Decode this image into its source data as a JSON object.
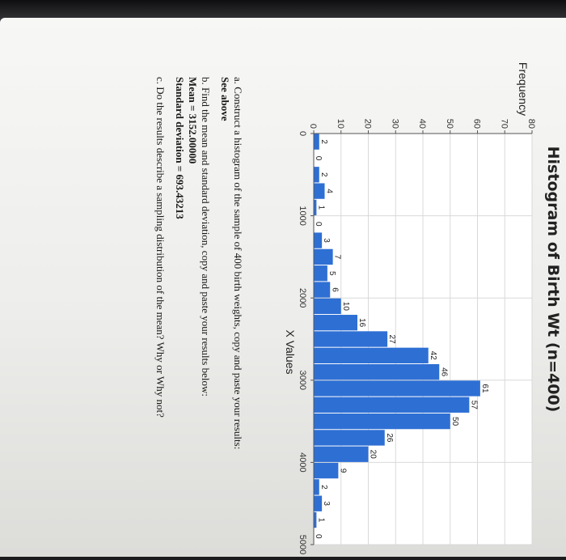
{
  "chart_data": {
    "type": "bar",
    "title": "Histogram of Birth Wt (n=400)",
    "xlabel": "X Values",
    "ylabel": "Frequency",
    "xlim": [
      0,
      5000
    ],
    "ylim": [
      0,
      80
    ],
    "x_ticks": [
      "0",
      "1000",
      "2000",
      "3000",
      "4000",
      "5000"
    ],
    "y_ticks": [
      "0",
      "10",
      "20",
      "30",
      "40",
      "50",
      "60",
      "70",
      "80"
    ],
    "bin_width": 200,
    "bin_starts": [
      0,
      200,
      400,
      600,
      800,
      1000,
      1200,
      1400,
      1600,
      1800,
      2000,
      2200,
      2400,
      2600,
      2800,
      3000,
      3200,
      3400,
      3600,
      3800,
      4000,
      4200,
      4400,
      4600,
      4800
    ],
    "values": [
      2,
      0,
      2,
      4,
      1,
      0,
      3,
      7,
      5,
      6,
      10,
      16,
      27,
      42,
      46,
      61,
      57,
      50,
      26,
      20,
      9,
      2,
      3,
      1,
      0
    ],
    "grid": true,
    "bar_color": "#2e6fd4"
  },
  "questions": {
    "a_text": "a. Construct a histogram of the sample of 400 birth weights, copy and paste your results:",
    "a_answer": "See above",
    "b_text": "b. Find the mean and standard deviation, copy and paste your results below:",
    "b_mean": "Mean = 3152.00000",
    "b_sd": "Standard deviation = 693.43213",
    "c_text": "c. Do the results describe a sampling distribution of the mean? Why or Why not?"
  }
}
